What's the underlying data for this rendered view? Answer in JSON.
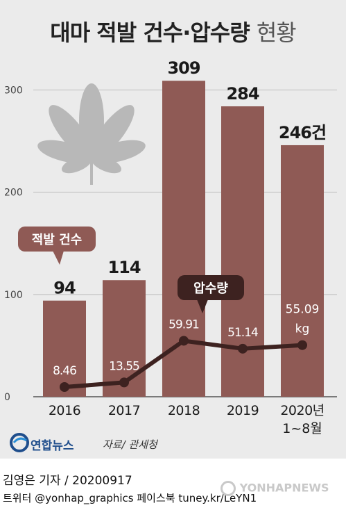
{
  "title": {
    "main": "대마 적발 건수·압수량",
    "suffix": "현황"
  },
  "chart_data": {
    "type": "bar",
    "categories": [
      "2016",
      "2017",
      "2018",
      "2019",
      "2020년"
    ],
    "category_sublabels": [
      "",
      "",
      "",
      "",
      "1~8월"
    ],
    "series": [
      {
        "name": "적발 건수",
        "type": "bar",
        "values": [
          94,
          114,
          309,
          284,
          246
        ],
        "labels": [
          "94",
          "114",
          "309",
          "284",
          "246건"
        ],
        "color": "#8f5a55"
      },
      {
        "name": "압수량",
        "type": "line",
        "values": [
          8.46,
          13.55,
          59.91,
          51.14,
          55.09
        ],
        "labels": [
          "8.46",
          "13.55",
          "59.91",
          "51.14",
          "55.09"
        ],
        "unit": "kg",
        "color": "#3d2220"
      }
    ],
    "yticks": [
      0,
      100,
      200,
      300
    ],
    "ylim": [
      0,
      320
    ],
    "grid": true
  },
  "footer": {
    "brand": "연합뉴스",
    "source": "자료/ 관세청",
    "reporter": "김영은 기자 / 20200917",
    "social": "트위터 @yonhap_graphics  페이스북 tuney.kr/LeYN1",
    "watermark": "YONHAPNEWS"
  }
}
